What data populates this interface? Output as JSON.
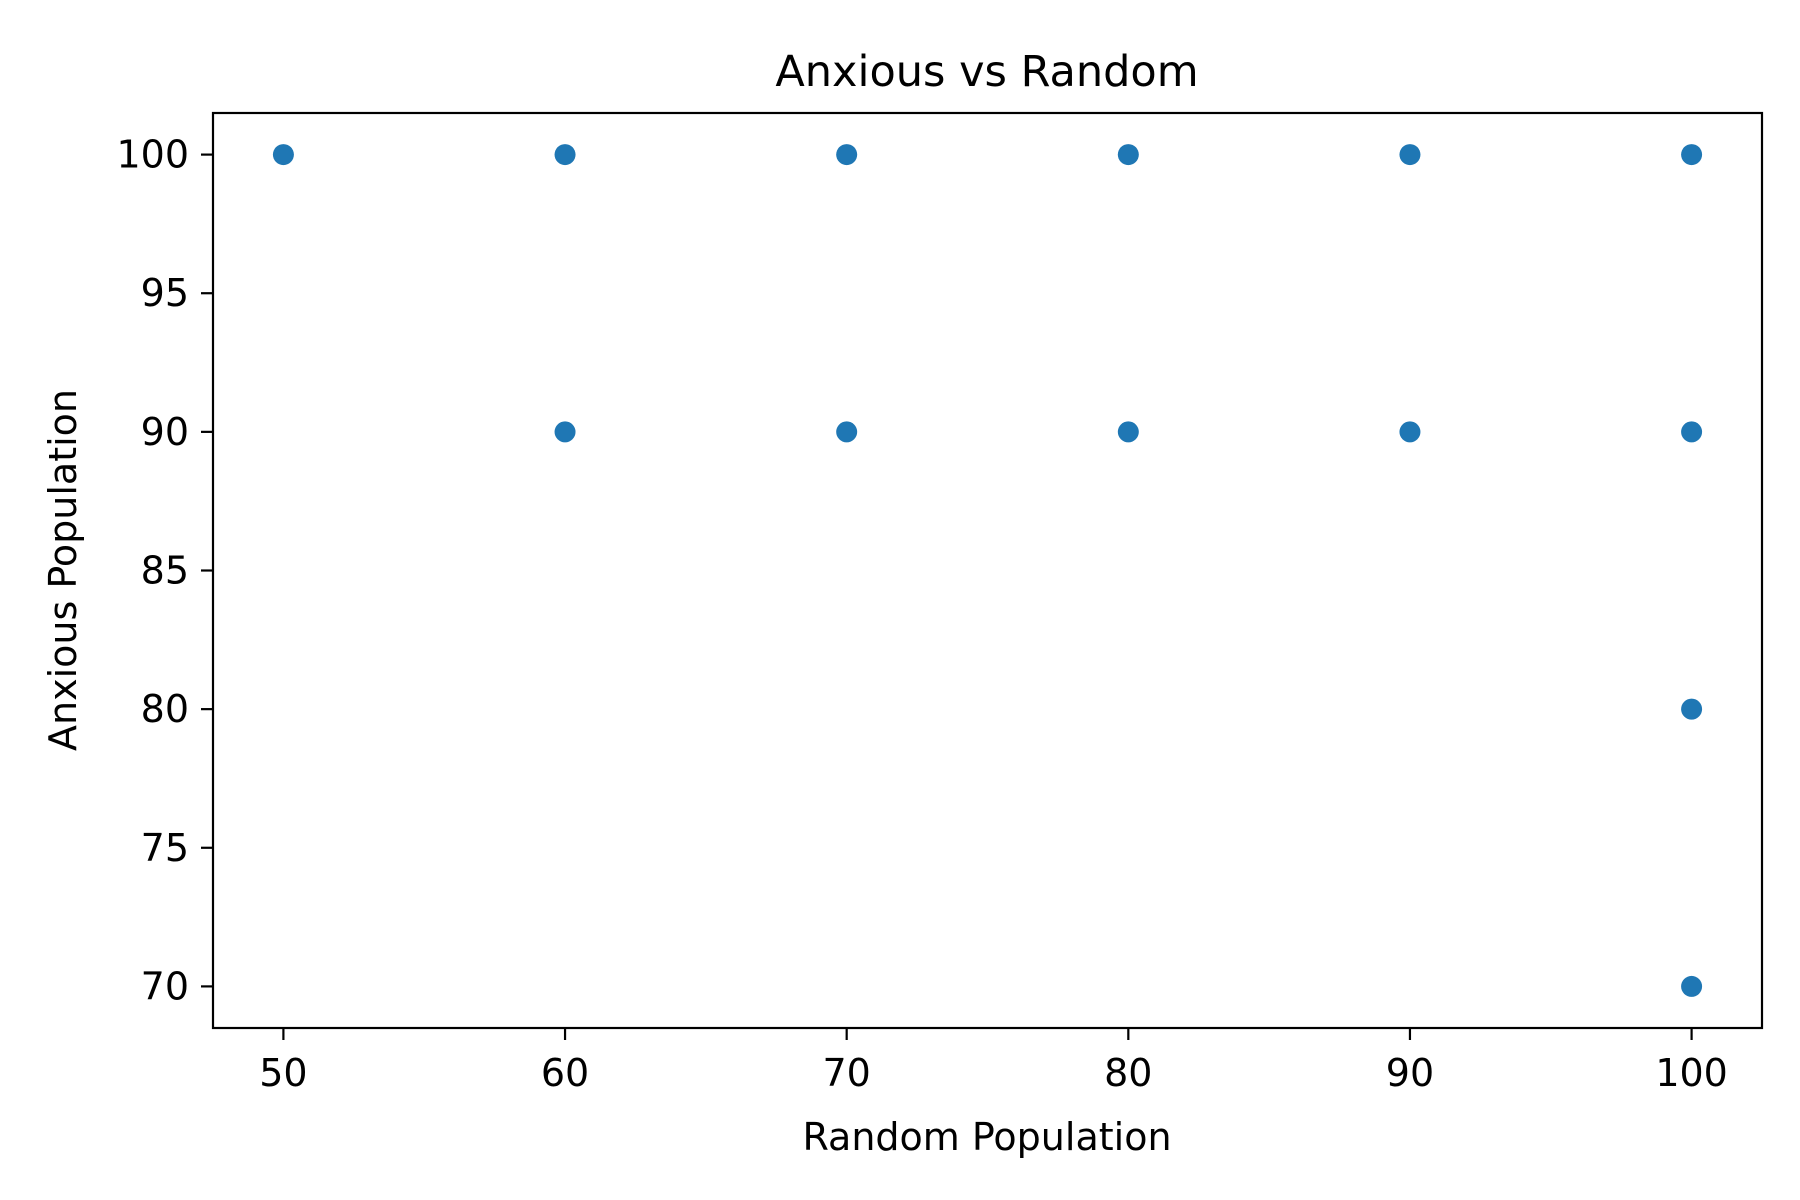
{
  "chart_data": {
    "type": "scatter",
    "title": "Anxious vs Random",
    "xlabel": "Random Population",
    "ylabel": "Anxious Population",
    "xlim": [
      47.5,
      102.5
    ],
    "ylim": [
      68.5,
      101.5
    ],
    "x_ticks": [
      50,
      60,
      70,
      80,
      90,
      100
    ],
    "y_ticks": [
      70,
      75,
      80,
      85,
      90,
      95,
      100
    ],
    "grid": false,
    "marker_color": "#1f77b4",
    "series": [
      {
        "points": [
          {
            "x": 50,
            "y": 100
          },
          {
            "x": 60,
            "y": 100
          },
          {
            "x": 70,
            "y": 100
          },
          {
            "x": 80,
            "y": 100
          },
          {
            "x": 90,
            "y": 100
          },
          {
            "x": 100,
            "y": 100
          },
          {
            "x": 60,
            "y": 90
          },
          {
            "x": 70,
            "y": 90
          },
          {
            "x": 80,
            "y": 90
          },
          {
            "x": 90,
            "y": 90
          },
          {
            "x": 100,
            "y": 90
          },
          {
            "x": 100,
            "y": 80
          },
          {
            "x": 100,
            "y": 70
          }
        ]
      }
    ]
  }
}
